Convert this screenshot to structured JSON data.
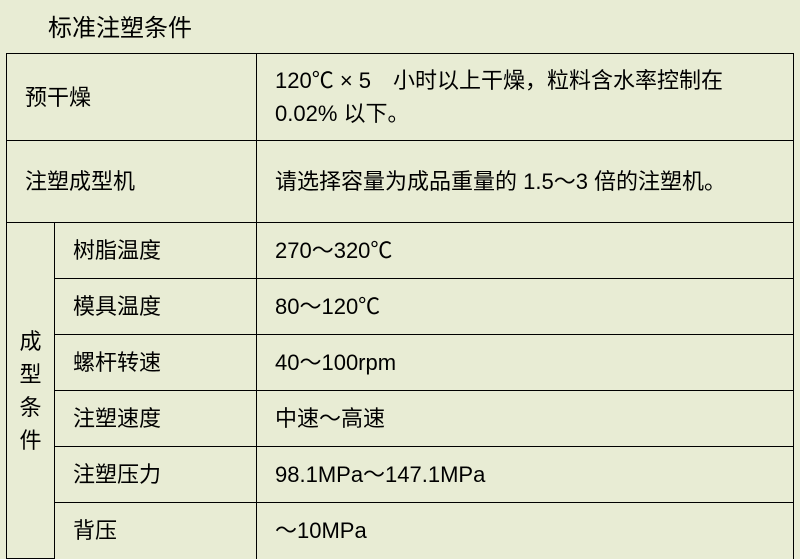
{
  "title": "标准注塑条件",
  "rows": {
    "predry": {
      "label": "预干燥",
      "value": "120℃ × 5　小时以上干燥，粒料含水率控制在 0.02% 以下。"
    },
    "machine": {
      "label": "注塑成型机",
      "value": "请选择容量为成品重量的 1.5～3 倍的注塑机。"
    },
    "conditions_label": "成型条件",
    "conditions_chars": [
      "成",
      "型",
      "条",
      "件"
    ],
    "resin_temp": {
      "label": "树脂温度",
      "value": "270～320℃"
    },
    "mold_temp": {
      "label": "模具温度",
      "value": "80～120℃"
    },
    "screw_speed": {
      "label": "螺杆转速",
      "value": "40～100rpm"
    },
    "inject_speed": {
      "label": "注塑速度",
      "value": "中速～高速"
    },
    "inject_pressure": {
      "label": "注塑压力",
      "value": "98.1MPa～147.1MPa"
    },
    "back_pressure": {
      "label": "背压",
      "value": "～10MPa"
    }
  },
  "colors": {
    "background": "#e8ecd4",
    "text": "#000000",
    "border": "#000000"
  },
  "typography": {
    "title_fontsize": 24,
    "cell_fontsize": 22
  }
}
